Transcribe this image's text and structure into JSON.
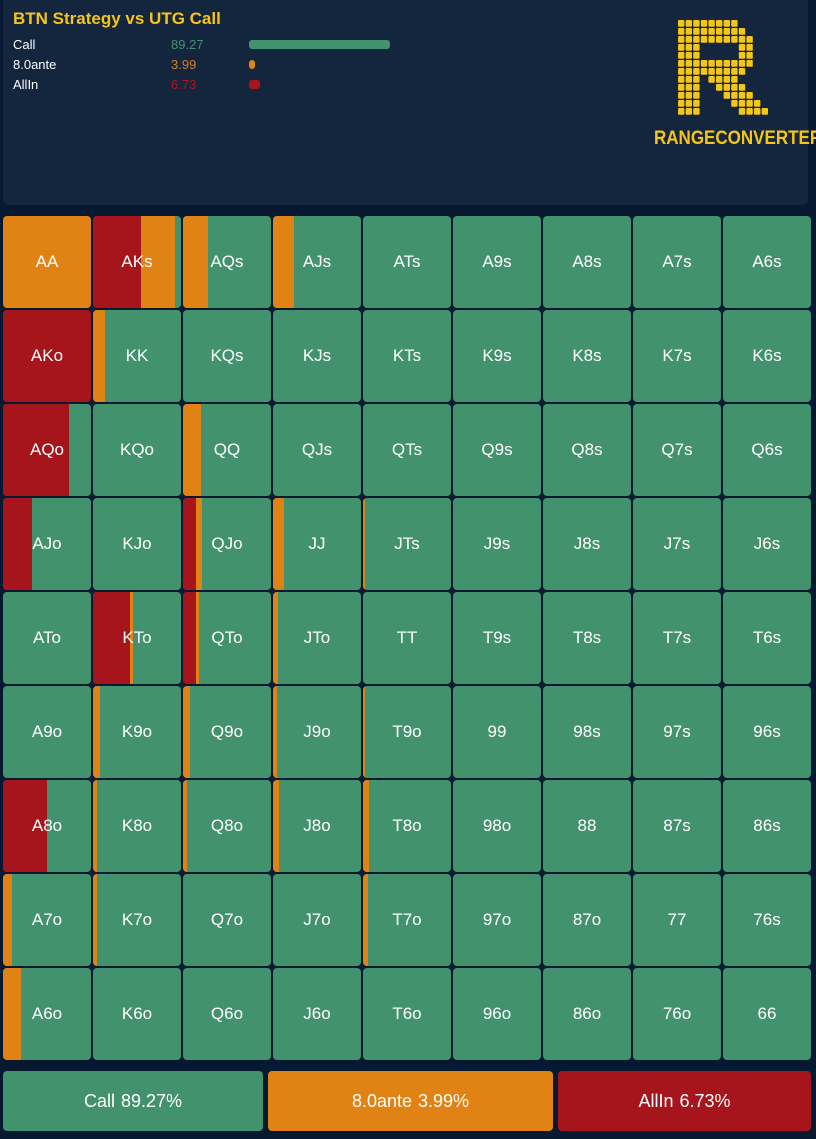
{
  "header": {
    "title": "BTN Strategy vs UTG Call",
    "legend": [
      {
        "label": "Call",
        "value": "89.27",
        "color": "#42926e",
        "pct": 89.27
      },
      {
        "label": "8.0ante",
        "value": "3.99",
        "color": "#e08214",
        "pct": 3.99
      },
      {
        "label": "AllIn",
        "value": "6.73",
        "color": "#a6141c",
        "pct": 6.73
      }
    ]
  },
  "logo": {
    "text": "RANGECONVERTER"
  },
  "colors": {
    "call": "#42926e",
    "ante": "#e08214",
    "allin": "#a6141c"
  },
  "grid": [
    [
      [
        "AA",
        0,
        1
      ],
      [
        "AKs",
        0.54,
        0.39
      ],
      [
        "AQs",
        0,
        0.28
      ],
      [
        "AJs",
        0,
        0.24
      ],
      [
        "ATs",
        0,
        0
      ],
      [
        "A9s",
        0,
        0
      ],
      [
        "A8s",
        0,
        0
      ],
      [
        "A7s",
        0,
        0
      ],
      [
        "A6s",
        0,
        0
      ]
    ],
    [
      [
        "AKo",
        1,
        0
      ],
      [
        "KK",
        0,
        0.14
      ],
      [
        "KQs",
        0,
        0
      ],
      [
        "KJs",
        0,
        0
      ],
      [
        "KTs",
        0,
        0
      ],
      [
        "K9s",
        0,
        0
      ],
      [
        "K8s",
        0,
        0
      ],
      [
        "K7s",
        0,
        0
      ],
      [
        "K6s",
        0,
        0
      ]
    ],
    [
      [
        "AQo",
        0.75,
        0
      ],
      [
        "KQo",
        0,
        0
      ],
      [
        "QQ",
        0,
        0.2
      ],
      [
        "QJs",
        0,
        0
      ],
      [
        "QTs",
        0,
        0
      ],
      [
        "Q9s",
        0,
        0
      ],
      [
        "Q8s",
        0,
        0
      ],
      [
        "Q7s",
        0,
        0
      ],
      [
        "Q6s",
        0,
        0
      ]
    ],
    [
      [
        "AJo",
        0.33,
        0
      ],
      [
        "KJo",
        0,
        0
      ],
      [
        "QJo",
        0.15,
        0.07
      ],
      [
        "JJ",
        0,
        0.12
      ],
      [
        "JTs",
        0,
        0.02
      ],
      [
        "J9s",
        0,
        0
      ],
      [
        "J8s",
        0,
        0
      ],
      [
        "J7s",
        0,
        0
      ],
      [
        "J6s",
        0,
        0
      ]
    ],
    [
      [
        "ATo",
        0,
        0
      ],
      [
        "KTo",
        0.42,
        0.03
      ],
      [
        "QTo",
        0.15,
        0.03
      ],
      [
        "JTo",
        0,
        0.06
      ],
      [
        "TT",
        0,
        0
      ],
      [
        "T9s",
        0,
        0
      ],
      [
        "T8s",
        0,
        0
      ],
      [
        "T7s",
        0,
        0
      ],
      [
        "T6s",
        0,
        0
      ]
    ],
    [
      [
        "A9o",
        0,
        0
      ],
      [
        "K9o",
        0,
        0.08
      ],
      [
        "Q9o",
        0,
        0.08
      ],
      [
        "J9o",
        0,
        0.04
      ],
      [
        "T9o",
        0,
        0.02
      ],
      [
        "99",
        0,
        0
      ],
      [
        "98s",
        0,
        0
      ],
      [
        "97s",
        0,
        0
      ],
      [
        "96s",
        0,
        0
      ]
    ],
    [
      [
        "A8o",
        0.5,
        0
      ],
      [
        "K8o",
        0,
        0.04
      ],
      [
        "Q8o",
        0,
        0.04
      ],
      [
        "J8o",
        0,
        0.07
      ],
      [
        "T8o",
        0,
        0.07
      ],
      [
        "98o",
        0,
        0
      ],
      [
        "88",
        0,
        0
      ],
      [
        "87s",
        0,
        0
      ],
      [
        "86s",
        0,
        0
      ]
    ],
    [
      [
        "A7o",
        0,
        0.1
      ],
      [
        "K7o",
        0,
        0.04
      ],
      [
        "Q7o",
        0,
        0
      ],
      [
        "J7o",
        0,
        0
      ],
      [
        "T7o",
        0,
        0.06
      ],
      [
        "97o",
        0,
        0
      ],
      [
        "87o",
        0,
        0
      ],
      [
        "77",
        0,
        0
      ],
      [
        "76s",
        0,
        0
      ]
    ],
    [
      [
        "A6o",
        0,
        0.2
      ],
      [
        "K6o",
        0,
        0
      ],
      [
        "Q6o",
        0,
        0
      ],
      [
        "J6o",
        0,
        0
      ],
      [
        "T6o",
        0,
        0
      ],
      [
        "96o",
        0,
        0
      ],
      [
        "86o",
        0,
        0
      ],
      [
        "76o",
        0,
        0
      ],
      [
        "66",
        0,
        0
      ]
    ]
  ],
  "footer": [
    {
      "label": "Call",
      "value": "89.27%"
    },
    {
      "label": "8.0ante",
      "value": "3.99%"
    },
    {
      "label": "AllIn",
      "value": "6.73%"
    }
  ]
}
